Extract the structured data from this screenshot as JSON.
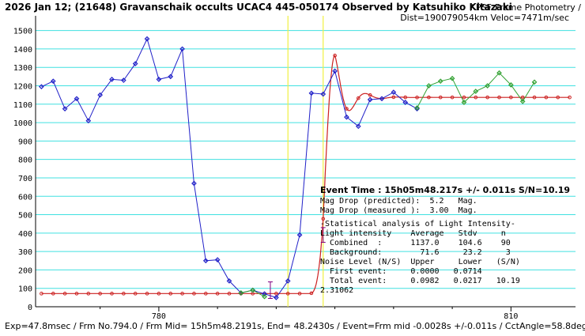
{
  "chart_data": {
    "type": "line",
    "title": "2026 Jan 12; (21648) Gravanschaik occults UCAC4 445-050174 Observed by Katsuhiko Kitazaki",
    "subtitle_right": "/ PSF-Frame Photometry /",
    "subtitle_line2": "Dist=190079054km Veloc=7471m/sec",
    "footer": "Exp=47.8msec / Frm No.794.0 / Frm Mid= 15h5m48.2191s, End= 48.2430s / Event=Frm mid -0.0028s +/-0.011s / CctAngle=58.8deg",
    "xlim": [
      769.5,
      815.5
    ],
    "ylim": [
      0,
      1580
    ],
    "y_ticks": [
      0,
      100,
      200,
      300,
      400,
      500,
      600,
      700,
      800,
      900,
      1000,
      1100,
      1200,
      1300,
      1400,
      1500
    ],
    "x_ticks": [
      780,
      810
    ],
    "x_minor_ticks": [
      775,
      785,
      790,
      795,
      800,
      805
    ],
    "grid": true,
    "event_lines_x": [
      791.0,
      794.0
    ],
    "series": [
      {
        "color": "#2020c8",
        "points": [
          [
            770,
            1195
          ],
          [
            771,
            1225
          ],
          [
            772,
            1075
          ],
          [
            773,
            1130
          ],
          [
            774,
            1010
          ],
          [
            775,
            1150
          ],
          [
            776,
            1235
          ],
          [
            777,
            1230
          ],
          [
            778,
            1320
          ],
          [
            779,
            1455
          ],
          [
            780,
            1235
          ],
          [
            781,
            1250
          ],
          [
            782,
            1400
          ],
          [
            783,
            670
          ],
          [
            784,
            250
          ],
          [
            785,
            255
          ],
          [
            786,
            140
          ],
          [
            787,
            75
          ],
          [
            788,
            90
          ],
          [
            789,
            70
          ],
          [
            790,
            50
          ],
          [
            791,
            140
          ],
          [
            792,
            390
          ],
          [
            793,
            1160
          ],
          [
            794,
            1155
          ],
          [
            795,
            1280
          ],
          [
            796,
            1030
          ],
          [
            797,
            980
          ],
          [
            798,
            1125
          ],
          [
            799,
            1130
          ],
          [
            800,
            1165
          ],
          [
            801,
            1110
          ],
          [
            802,
            1075
          ]
        ]
      },
      {
        "color": "#30a030",
        "points": [
          [
            787,
            75
          ],
          [
            788,
            90
          ],
          [
            789,
            55
          ],
          [
            802,
            1080
          ],
          [
            803,
            1200
          ],
          [
            804,
            1225
          ],
          [
            805,
            1240
          ],
          [
            806,
            1110
          ],
          [
            807,
            1170
          ],
          [
            808,
            1200
          ],
          [
            809,
            1270
          ],
          [
            810,
            1205
          ],
          [
            811,
            1115
          ],
          [
            812,
            1220
          ]
        ]
      },
      {
        "color": "#cc2020",
        "model": "diffraction",
        "baseline": 71.6,
        "combined": 1137.0,
        "event_x": 794.0
      }
    ],
    "error_bars": [
      {
        "x": 789.5,
        "y": 90,
        "err": 45
      },
      {
        "x": 794.0,
        "y": 390,
        "err": 40
      }
    ]
  },
  "stats": {
    "event_time": "Event Time : 15h05m48.217s  +/- 0.011s  S/N=10.19",
    "mag_drop_pred": "Mag Drop (predicted):  5.2   Mag.",
    "mag_drop_meas": "Mag Drop (measured ):  3.00  Mag.",
    "stat_header": "-Statistical analysis of Light Intensity-",
    "col_header": "Light intensity    Average   Stdv     n",
    "combined": "  Combined  :      1137.0    104.6    90",
    "background": "  Background:        71.6     23.2     3",
    "noise_header": "Noise Level (N/S)  Upper     Lower   (S/N)",
    "first_event": "  First event:     0.0000   0.0714",
    "total_event": "  Total event:     0.0982   0.0217   10.19",
    "extra_value": "2.31062"
  }
}
